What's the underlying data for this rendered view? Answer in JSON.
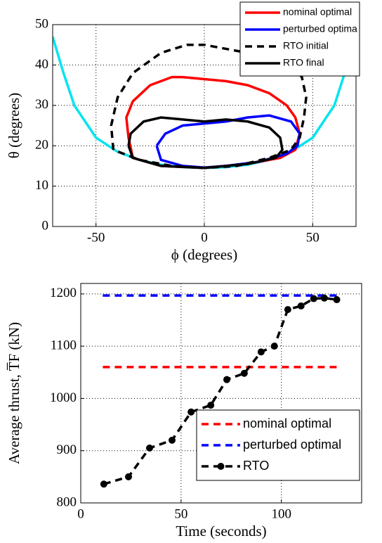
{
  "chart_data": [
    {
      "type": "line",
      "xlabel": "ϕ (degrees)",
      "ylabel": "θ (degrees)",
      "xlim": [
        -70,
        70
      ],
      "ylim": [
        0,
        50
      ],
      "xticks": [
        -50,
        0,
        50
      ],
      "yticks": [
        0,
        10,
        20,
        30,
        40,
        50
      ],
      "grid": true,
      "legend": "upper right",
      "series": [
        {
          "color": "#00e5ee",
          "linestyle": "solid",
          "x": [
            -70,
            -65,
            -60,
            -50,
            -40,
            -30,
            -20,
            -10,
            0,
            10,
            20,
            30,
            40,
            50,
            60,
            66
          ],
          "values": [
            47,
            38,
            30,
            22,
            18.5,
            16.5,
            15.3,
            14.7,
            14.5,
            14.7,
            15.3,
            16.5,
            18.5,
            22,
            30,
            40
          ]
        },
        {
          "name": "nominal optimal",
          "color": "#ff0000",
          "linestyle": "solid",
          "x": [
            -33,
            -35,
            -36,
            -33,
            -25,
            -15,
            -10,
            0,
            10,
            20,
            30,
            38,
            42,
            44,
            42,
            35,
            20,
            0,
            -20,
            -33
          ],
          "values": [
            17,
            22,
            27,
            31,
            35,
            37,
            37,
            36.5,
            36,
            35,
            33,
            30,
            27,
            23,
            19,
            17,
            15.5,
            14.5,
            15,
            17
          ]
        },
        {
          "name": "perturbed optima",
          "color": "#0000ff",
          "linestyle": "solid",
          "x": [
            -22,
            -18,
            -10,
            0,
            10,
            20,
            30,
            40,
            44,
            43,
            38,
            25,
            10,
            0,
            -10,
            -20,
            -22
          ],
          "values": [
            20,
            23,
            25,
            25.5,
            26,
            27,
            27.5,
            26,
            23,
            20,
            18,
            16,
            15,
            14.6,
            15,
            16.5,
            20
          ]
        },
        {
          "name": "RTO initial",
          "color": "#000000",
          "linestyle": "dashed",
          "x": [
            -42,
            -43,
            -40,
            -33,
            -20,
            -8,
            0,
            10,
            20,
            30,
            40,
            45,
            47,
            46,
            44,
            40,
            30,
            15,
            0,
            -15,
            -30,
            -42
          ],
          "values": [
            19,
            25,
            32,
            38,
            43,
            45,
            45,
            44,
            43,
            42,
            40,
            37,
            32,
            27,
            22,
            19,
            17,
            15,
            14.5,
            15,
            16.5,
            19
          ]
        },
        {
          "name": "RTO final",
          "color": "#000000",
          "linestyle": "solid",
          "x": [
            -35,
            -34,
            -28,
            -20,
            -10,
            0,
            10,
            20,
            30,
            35,
            36,
            33,
            20,
            0,
            -20,
            -33,
            -35
          ],
          "values": [
            20,
            23,
            26,
            27,
            26.5,
            26,
            26.5,
            26,
            24.5,
            22,
            19,
            17,
            15.5,
            14.5,
            15,
            17,
            20
          ]
        }
      ]
    },
    {
      "type": "line",
      "xlabel": "Time (seconds)",
      "ylabel": "Average thrust, T̅F (kN)",
      "xlim": [
        0,
        140
      ],
      "ylim": [
        800,
        1220
      ],
      "xticks": [
        0,
        50,
        100
      ],
      "yticks": [
        800,
        900,
        1000,
        1100,
        1200
      ],
      "grid": true,
      "legend": "lower right",
      "series": [
        {
          "name": "nominal optimal",
          "color": "#ff0000",
          "linestyle": "dashed",
          "x": [
            11,
            129
          ],
          "values": [
            1060,
            1060
          ]
        },
        {
          "name": "perturbed optimal",
          "color": "#0000ff",
          "linestyle": "dashed",
          "x": [
            11,
            129
          ],
          "values": [
            1197,
            1197
          ]
        },
        {
          "name": "RTO",
          "color": "#000000",
          "linestyle": "dashed",
          "marker": "circle",
          "x": [
            11.5,
            23.8,
            34.3,
            45.5,
            55,
            64.8,
            72.8,
            81.5,
            89.9,
            96.5,
            103.2,
            109.8,
            116.1,
            121.4,
            127.6
          ],
          "values": [
            836,
            850,
            905,
            920,
            974,
            987,
            1036,
            1048,
            1089,
            1100,
            1170,
            1177,
            1191,
            1192,
            1189
          ]
        }
      ]
    }
  ]
}
